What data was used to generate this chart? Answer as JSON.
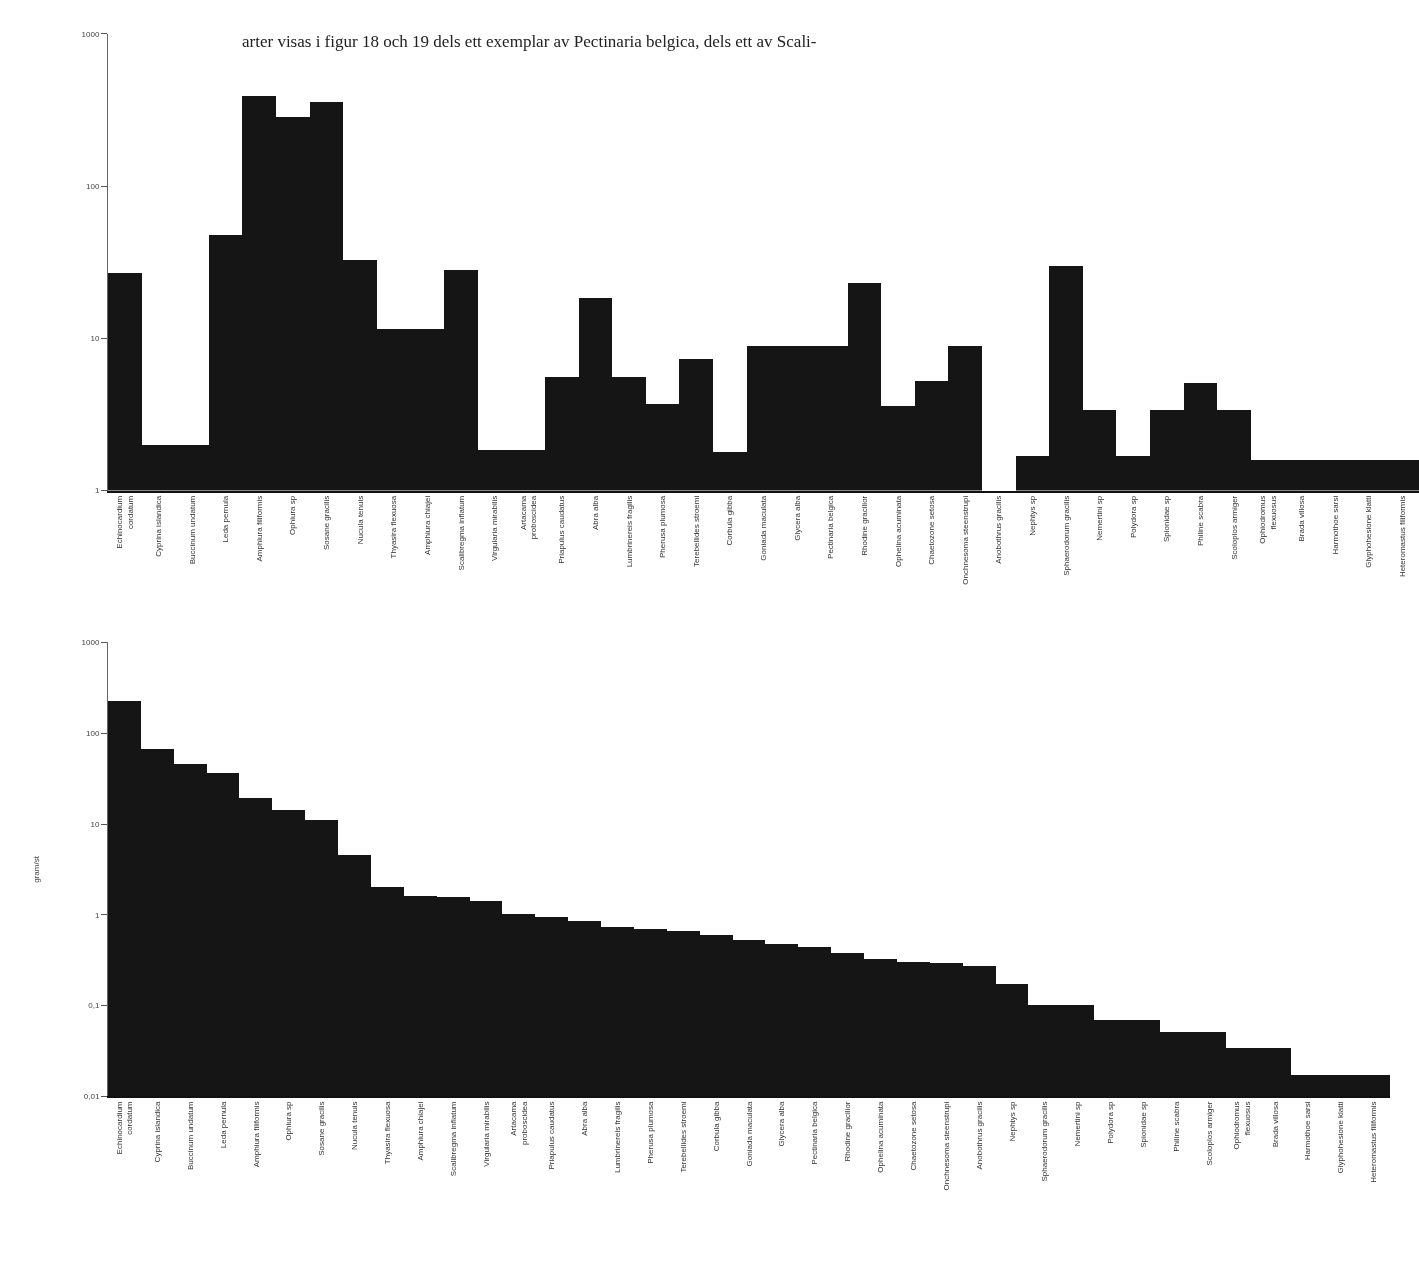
{
  "chart_data": [
    {
      "type": "bar",
      "color": "#151515",
      "log": true,
      "ylim": [
        1,
        1000
      ],
      "yticks": [
        1,
        10,
        100,
        1000
      ],
      "annotations": [
        "arter visas i figur 18 och 19 dels ett exemplar av Pectinaria belgica, dels ett av Scali-"
      ],
      "categories": [
        "Echinocardium\ncordatum",
        "Cyprina islandica",
        "Buccinum undatum",
        "Leda pernula",
        "Amphiura filiformis",
        "Ophiura sp",
        "Sosane gracilis",
        "Nucula tenuis",
        "Thyasira flexuosa",
        "Amphiura chiajei",
        "Scalibregma inflatum",
        "Virgularia mirabilis",
        "Artacama\nproboscidea",
        "Priapulus caudatus",
        "Abra alba",
        "Lumbrinereis fragilis",
        "Pherusa plumosa",
        "Terebellides stroemi",
        "Corbula gibba",
        "Goniada maculata",
        "Glycera alba",
        "Pectinaria belgica",
        "Rhodine gracilior",
        "Ophelina acuminata",
        "Chaetozone setosa",
        "Onchnesoma steenstrupi",
        "Anobothrus gracilis",
        "Nephtys sp",
        "Sphaerodorum gracilis",
        "Nemertini sp",
        "Polydora sp",
        "Spionidae sp",
        "Philine scabra",
        "Scoloplos armiger",
        "Ophiodromus\nflexuosus",
        "Brada villosa",
        "Harmothoe sarsi",
        "Glyphohesione klatti",
        "Heteromastus filiformis"
      ],
      "values": [
        27,
        2,
        2,
        48,
        390,
        285,
        360,
        33,
        11.6,
        11.6,
        28,
        1.85,
        1.85,
        5.6,
        18.5,
        5.6,
        3.7,
        7.3,
        1.8,
        8.9,
        8.9,
        8.9,
        23,
        3.6,
        5.3,
        8.9,
        null,
        1.7,
        30,
        3.4,
        1.7,
        3.4,
        5.1,
        3.4,
        1.6,
        1.6,
        1.6,
        1.6,
        1.6
      ]
    },
    {
      "type": "bar",
      "color": "#151515",
      "log": true,
      "ylabel": "gram/st",
      "ylim": [
        0.01,
        1000
      ],
      "yticks": [
        {
          "value": 0.01,
          "label": "0,01"
        },
        {
          "value": 0.1,
          "label": "0,1"
        },
        1,
        10,
        100,
        1000
      ],
      "categories": [
        "Echinocardium\ncordatum",
        "Cyprina islandica",
        "Buccinum undatum",
        "Leda pernula",
        "Amphiura filiformis",
        "Ophiura sp",
        "Sosane gracilis",
        "Nucula tenuis",
        "Thyasira flexuosa",
        "Amphiura chiajei",
        "Scalibregma inflatum",
        "Virgularia mirabilis",
        "Artacama\nproboscidea",
        "Priapulus caudatus",
        "Abra alba",
        "Lumbrinereis fragilis",
        "Pherusa plumosa",
        "Terebellides stroemi",
        "Corbula gibba",
        "Goniada maculata",
        "Glycera alba",
        "Pectinaria belgica",
        "Rhodine gracilior",
        "Ophelina acuminata",
        "Chaetozone setosa",
        "Onchnesoma steenstrupi",
        "Anobothrus gracilis",
        "Nephtys sp",
        "Sphaerodorum gracilis",
        "Nemertini sp",
        "Polydora sp",
        "Spionidae sp",
        "Philine scabra",
        "Scoloplos armiger",
        "Ophiodromus\nflexuosus",
        "Brada villosa",
        "Harmothoe sarsi",
        "Glyphohesione klatti",
        "Heteromastus filiformis"
      ],
      "values": [
        225,
        67,
        45,
        36,
        19,
        14,
        11,
        4.5,
        2.0,
        1.6,
        1.55,
        1.4,
        1.0,
        0.93,
        0.84,
        0.72,
        0.69,
        0.65,
        0.59,
        0.52,
        0.47,
        0.44,
        0.37,
        0.32,
        0.3,
        0.29,
        0.27,
        0.17,
        0.1,
        0.1,
        0.069,
        0.069,
        0.051,
        0.051,
        0.034,
        0.034,
        0.017,
        0.017,
        0.017
      ]
    }
  ]
}
